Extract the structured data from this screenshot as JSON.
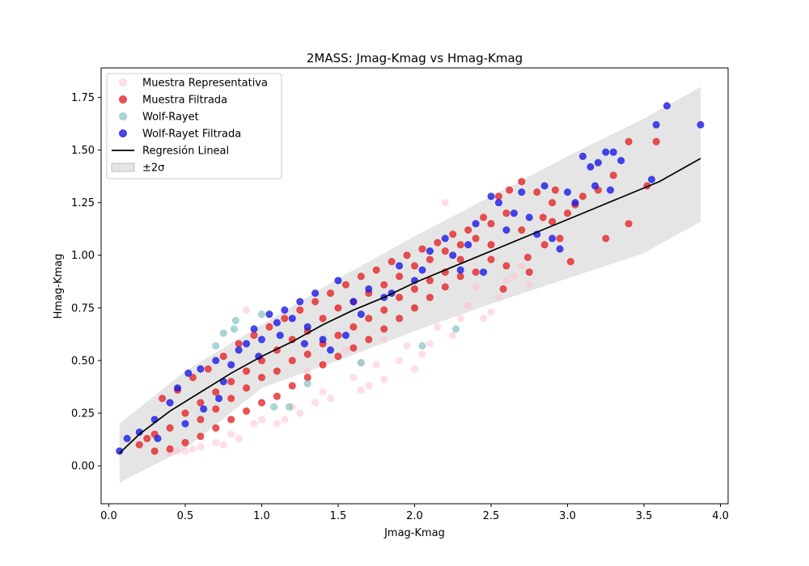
{
  "chart_data": {
    "type": "scatter",
    "title": "2MASS: Jmag-Kmag vs Hmag-Kmag",
    "xlabel": "Jmag-Kmag",
    "ylabel": "Hmag-Kmag",
    "xlim": [
      -0.05,
      4.05
    ],
    "ylim": [
      -0.18,
      1.89
    ],
    "xticks": [
      0.0,
      0.5,
      1.0,
      1.5,
      2.0,
      2.5,
      3.0,
      3.5,
      4.0
    ],
    "xtick_labels": [
      "0.0",
      "0.5",
      "1.0",
      "1.5",
      "2.0",
      "2.5",
      "3.0",
      "3.5",
      "4.0"
    ],
    "yticks": [
      0.0,
      0.25,
      0.5,
      0.75,
      1.0,
      1.25,
      1.5,
      1.75
    ],
    "ytick_labels": [
      "0.00",
      "0.25",
      "0.50",
      "0.75",
      "1.00",
      "1.25",
      "1.50",
      "1.75"
    ],
    "grid": false,
    "legend_position": "top-left",
    "legend": [
      {
        "label": "Muestra Representativa",
        "kind": "marker",
        "color": "#ffc0cb",
        "opacity": 0.5
      },
      {
        "label": "Muestra Filtrada",
        "kind": "marker",
        "color": "#e41a1c",
        "opacity": 0.75
      },
      {
        "label": "Wolf-Rayet",
        "kind": "marker",
        "color": "#66b2b2",
        "opacity": 0.55
      },
      {
        "label": "Wolf-Rayet Filtrada",
        "kind": "marker",
        "color": "#1a1ae6",
        "opacity": 0.8
      },
      {
        "label": "Regresión Lineal",
        "kind": "line",
        "color": "#000000"
      },
      {
        "label": "±2σ",
        "kind": "band",
        "color": "#cccccc"
      }
    ],
    "regression": {
      "name": "Regresión Lineal",
      "color": "#000000",
      "x": [
        0.07,
        0.2,
        0.4,
        0.6,
        0.8,
        1.0,
        1.2,
        1.4,
        1.6,
        1.8,
        2.0,
        2.2,
        2.4,
        2.6,
        2.8,
        3.0,
        3.2,
        3.4,
        3.6,
        3.87
      ],
      "y": [
        0.06,
        0.15,
        0.26,
        0.35,
        0.44,
        0.52,
        0.59,
        0.67,
        0.74,
        0.8,
        0.87,
        0.93,
        0.99,
        1.05,
        1.11,
        1.17,
        1.23,
        1.29,
        1.35,
        1.46
      ]
    },
    "band": {
      "name": "±2σ",
      "color": "#cccccc",
      "x": [
        0.07,
        0.5,
        1.0,
        1.5,
        2.0,
        2.5,
        3.0,
        3.5,
        3.87
      ],
      "upper": [
        0.2,
        0.45,
        0.67,
        0.89,
        1.09,
        1.28,
        1.47,
        1.65,
        1.8
      ],
      "lower": [
        -0.08,
        0.08,
        0.37,
        0.5,
        0.64,
        0.77,
        0.89,
        1.01,
        1.16
      ]
    },
    "series": [
      {
        "name": "Muestra Representativa",
        "color": "#ffc0cb",
        "opacity": 0.5,
        "points": [
          [
            0.9,
            0.74
          ],
          [
            1.2,
            0.7
          ],
          [
            1.5,
            0.75
          ],
          [
            2.0,
            0.75
          ],
          [
            2.2,
            1.25
          ],
          [
            2.5,
            1.05
          ],
          [
            2.6,
            0.88
          ],
          [
            2.75,
            0.86
          ],
          [
            2.7,
            0.95
          ],
          [
            2.3,
            0.7
          ],
          [
            1.8,
            0.6
          ],
          [
            2.4,
            0.85
          ],
          [
            1.65,
            0.49
          ],
          [
            2.1,
            0.58
          ],
          [
            1.9,
            0.5
          ],
          [
            1.4,
            0.35
          ],
          [
            1.6,
            0.42
          ],
          [
            1.2,
            0.28
          ],
          [
            1.0,
            0.22
          ],
          [
            0.8,
            0.15
          ],
          [
            0.6,
            0.09
          ],
          [
            0.5,
            0.07
          ],
          [
            0.4,
            0.06
          ],
          [
            1.7,
            0.38
          ],
          [
            2.0,
            0.46
          ],
          [
            1.55,
            0.55
          ],
          [
            1.3,
            0.45
          ],
          [
            2.25,
            0.62
          ],
          [
            2.45,
            0.7
          ],
          [
            1.1,
            0.2
          ],
          [
            0.7,
            0.11
          ],
          [
            0.95,
            0.2
          ],
          [
            1.8,
            0.41
          ],
          [
            2.05,
            0.53
          ],
          [
            1.45,
            0.32
          ],
          [
            1.75,
            0.48
          ],
          [
            0.85,
            0.13
          ],
          [
            1.25,
            0.25
          ],
          [
            1.65,
            0.36
          ],
          [
            2.15,
            0.66
          ],
          [
            2.55,
            0.8
          ],
          [
            2.65,
            0.9
          ],
          [
            1.95,
            0.57
          ],
          [
            1.35,
            0.3
          ],
          [
            0.55,
            0.08
          ],
          [
            0.45,
            0.07
          ],
          [
            0.75,
            0.1
          ],
          [
            1.15,
            0.22
          ],
          [
            2.35,
            0.76
          ],
          [
            2.5,
            0.73
          ]
        ]
      },
      {
        "name": "Muestra Filtrada",
        "color": "#e41a1c",
        "opacity": 0.75,
        "points": [
          [
            0.2,
            0.1
          ],
          [
            0.3,
            0.15
          ],
          [
            0.4,
            0.18
          ],
          [
            0.5,
            0.25
          ],
          [
            0.6,
            0.3
          ],
          [
            0.7,
            0.35
          ],
          [
            0.8,
            0.4
          ],
          [
            0.9,
            0.45
          ],
          [
            1.0,
            0.5
          ],
          [
            1.1,
            0.55
          ],
          [
            1.2,
            0.6
          ],
          [
            1.3,
            0.64
          ],
          [
            1.4,
            0.7
          ],
          [
            1.5,
            0.75
          ],
          [
            1.6,
            0.78
          ],
          [
            1.7,
            0.82
          ],
          [
            1.8,
            0.86
          ],
          [
            1.9,
            0.9
          ],
          [
            2.0,
            0.95
          ],
          [
            2.1,
            0.98
          ],
          [
            2.2,
            1.02
          ],
          [
            2.3,
            1.05
          ],
          [
            2.4,
            1.08
          ],
          [
            2.5,
            1.15
          ],
          [
            2.6,
            1.2
          ],
          [
            2.7,
            1.35
          ],
          [
            2.8,
            1.3
          ],
          [
            2.9,
            1.25
          ],
          [
            3.0,
            1.2
          ],
          [
            3.1,
            1.28
          ],
          [
            3.2,
            1.31
          ],
          [
            3.3,
            1.38
          ],
          [
            3.4,
            1.54
          ],
          [
            3.58,
            1.54
          ],
          [
            3.52,
            1.33
          ],
          [
            3.25,
            1.08
          ],
          [
            3.4,
            1.15
          ],
          [
            3.02,
            0.97
          ],
          [
            2.95,
            1.08
          ],
          [
            2.85,
            1.05
          ],
          [
            2.75,
            0.92
          ],
          [
            2.6,
            0.95
          ],
          [
            2.5,
            0.98
          ],
          [
            2.4,
            0.92
          ],
          [
            2.2,
            0.85
          ],
          [
            2.3,
            0.9
          ],
          [
            2.1,
            0.8
          ],
          [
            2.0,
            0.75
          ],
          [
            1.9,
            0.7
          ],
          [
            1.8,
            0.65
          ],
          [
            1.7,
            0.6
          ],
          [
            1.6,
            0.56
          ],
          [
            1.5,
            0.52
          ],
          [
            1.4,
            0.48
          ],
          [
            1.3,
            0.42
          ],
          [
            1.2,
            0.38
          ],
          [
            1.1,
            0.33
          ],
          [
            1.0,
            0.3
          ],
          [
            0.9,
            0.26
          ],
          [
            0.8,
            0.22
          ],
          [
            0.7,
            0.18
          ],
          [
            0.6,
            0.14
          ],
          [
            0.5,
            0.11
          ],
          [
            0.4,
            0.08
          ],
          [
            0.35,
            0.32
          ],
          [
            0.45,
            0.36
          ],
          [
            0.55,
            0.42
          ],
          [
            0.65,
            0.46
          ],
          [
            0.75,
            0.52
          ],
          [
            0.85,
            0.58
          ],
          [
            0.95,
            0.62
          ],
          [
            1.05,
            0.66
          ],
          [
            1.15,
            0.7
          ],
          [
            1.25,
            0.74
          ],
          [
            1.35,
            0.78
          ],
          [
            1.45,
            0.82
          ],
          [
            1.55,
            0.86
          ],
          [
            1.65,
            0.9
          ],
          [
            1.75,
            0.93
          ],
          [
            1.85,
            0.97
          ],
          [
            1.95,
            1.0
          ],
          [
            2.05,
            1.03
          ],
          [
            2.15,
            1.06
          ],
          [
            2.25,
            1.1
          ],
          [
            2.35,
            1.12
          ],
          [
            2.45,
            1.18
          ],
          [
            2.55,
            1.28
          ],
          [
            2.62,
            1.31
          ],
          [
            2.92,
            1.31
          ],
          [
            3.05,
            1.24
          ],
          [
            0.3,
            0.07
          ],
          [
            0.25,
            0.13
          ],
          [
            1.2,
            0.5
          ],
          [
            1.4,
            0.58
          ],
          [
            1.6,
            0.66
          ],
          [
            1.8,
            0.74
          ],
          [
            2.0,
            0.84
          ],
          [
            2.2,
            0.92
          ],
          [
            0.6,
            0.22
          ],
          [
            0.8,
            0.32
          ],
          [
            1.0,
            0.42
          ],
          [
            0.7,
            0.27
          ],
          [
            0.9,
            0.37
          ],
          [
            1.1,
            0.45
          ],
          [
            1.3,
            0.53
          ],
          [
            1.5,
            0.62
          ],
          [
            1.7,
            0.7
          ],
          [
            1.9,
            0.8
          ],
          [
            2.1,
            0.88
          ],
          [
            2.3,
            0.98
          ],
          [
            2.5,
            1.05
          ],
          [
            2.7,
            1.12
          ],
          [
            2.9,
            1.16
          ],
          [
            2.58,
            0.84
          ],
          [
            2.74,
            0.99
          ],
          [
            2.84,
            1.18
          ]
        ]
      },
      {
        "name": "Wolf-Rayet",
        "color": "#66b2b2",
        "opacity": 0.55,
        "points": [
          [
            0.7,
            0.57
          ],
          [
            0.75,
            0.63
          ],
          [
            0.83,
            0.69
          ],
          [
            0.82,
            0.65
          ],
          [
            1.0,
            0.72
          ],
          [
            1.08,
            0.28
          ],
          [
            1.18,
            0.28
          ],
          [
            1.3,
            0.39
          ],
          [
            1.65,
            0.49
          ],
          [
            2.05,
            0.57
          ],
          [
            2.27,
            0.65
          ]
        ]
      },
      {
        "name": "Wolf-Rayet Filtrada",
        "color": "#1a1ae6",
        "opacity": 0.8,
        "points": [
          [
            0.07,
            0.07
          ],
          [
            0.12,
            0.13
          ],
          [
            0.2,
            0.16
          ],
          [
            0.3,
            0.22
          ],
          [
            0.4,
            0.3
          ],
          [
            0.45,
            0.37
          ],
          [
            0.52,
            0.44
          ],
          [
            0.6,
            0.46
          ],
          [
            0.62,
            0.27
          ],
          [
            0.7,
            0.5
          ],
          [
            0.72,
            0.32
          ],
          [
            0.8,
            0.48
          ],
          [
            0.85,
            0.55
          ],
          [
            0.9,
            0.58
          ],
          [
            0.95,
            0.65
          ],
          [
            1.0,
            0.6
          ],
          [
            1.05,
            0.72
          ],
          [
            1.1,
            0.68
          ],
          [
            1.15,
            0.74
          ],
          [
            1.2,
            0.7
          ],
          [
            1.25,
            0.78
          ],
          [
            1.3,
            0.66
          ],
          [
            1.35,
            0.82
          ],
          [
            1.4,
            0.6
          ],
          [
            1.5,
            0.88
          ],
          [
            1.6,
            0.78
          ],
          [
            1.7,
            0.84
          ],
          [
            1.8,
            0.8
          ],
          [
            1.9,
            0.95
          ],
          [
            2.0,
            0.88
          ],
          [
            2.1,
            1.02
          ],
          [
            2.2,
            1.08
          ],
          [
            2.3,
            0.93
          ],
          [
            2.4,
            1.15
          ],
          [
            2.5,
            1.28
          ],
          [
            2.55,
            1.25
          ],
          [
            2.65,
            1.2
          ],
          [
            2.7,
            1.3
          ],
          [
            2.8,
            1.1
          ],
          [
            2.85,
            1.33
          ],
          [
            2.9,
            1.08
          ],
          [
            3.0,
            1.3
          ],
          [
            3.1,
            1.47
          ],
          [
            3.15,
            1.42
          ],
          [
            3.2,
            1.44
          ],
          [
            3.25,
            1.49
          ],
          [
            3.3,
            1.49
          ],
          [
            3.35,
            1.45
          ],
          [
            3.55,
            1.36
          ],
          [
            3.58,
            1.62
          ],
          [
            3.65,
            1.71
          ],
          [
            3.87,
            1.62
          ],
          [
            2.95,
            1.03
          ],
          [
            2.6,
            1.12
          ],
          [
            2.45,
            0.92
          ],
          [
            2.25,
            1.0
          ],
          [
            1.55,
            0.62
          ],
          [
            1.45,
            0.55
          ],
          [
            0.5,
            0.2
          ],
          [
            0.32,
            0.13
          ],
          [
            0.75,
            0.4
          ],
          [
            0.98,
            0.52
          ],
          [
            1.12,
            0.62
          ],
          [
            1.28,
            0.58
          ],
          [
            1.65,
            0.72
          ],
          [
            1.85,
            0.82
          ],
          [
            2.05,
            0.93
          ],
          [
            2.35,
            1.05
          ],
          [
            2.75,
            1.18
          ],
          [
            3.05,
            1.25
          ],
          [
            3.18,
            1.33
          ],
          [
            3.28,
            1.31
          ]
        ]
      }
    ]
  }
}
